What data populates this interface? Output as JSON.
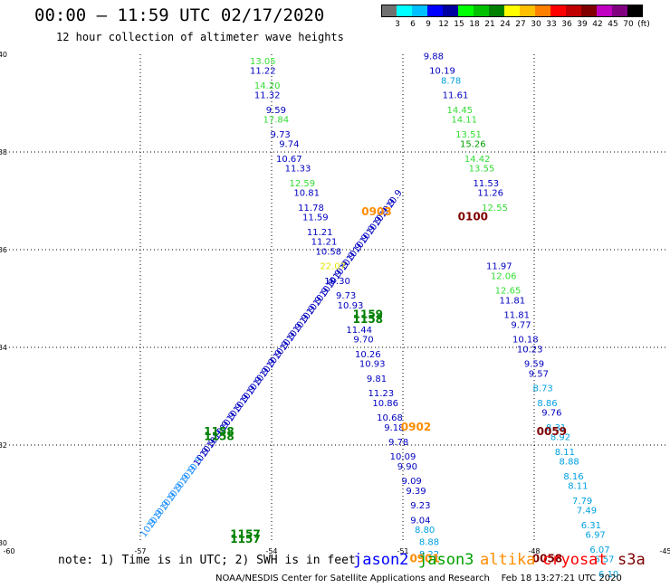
{
  "header": {
    "title": "00:00 – 11:59 UTC 02/17/2020",
    "subtitle": "12 hour collection of altimeter wave heights"
  },
  "colorbar": {
    "colors": [
      "#707070",
      "#00ffff",
      "#00c0ff",
      "#0000ff",
      "#0000a0",
      "#00ff00",
      "#00c000",
      "#008000",
      "#ffff00",
      "#ffc000",
      "#ff8000",
      "#ff0000",
      "#c00000",
      "#800000",
      "#c000c0",
      "#800080",
      "#000000"
    ],
    "labels": [
      "3",
      "6",
      "9",
      "12",
      "15",
      "18",
      "21",
      "24",
      "27",
      "30",
      "33",
      "36",
      "39",
      "42",
      "45",
      "70",
      "(ft)"
    ]
  },
  "chart_data": {
    "type": "map",
    "lon_range": [
      -60,
      -45
    ],
    "lat_range": [
      30,
      40
    ],
    "x_ticks": [
      "-60",
      "-57",
      "-54",
      "-51",
      "-48",
      "-45"
    ],
    "y_ticks": [
      "30",
      "32",
      "34",
      "36",
      "38",
      "40"
    ],
    "grid": true,
    "swh_labels": [
      {
        "lon": -54.2,
        "lat": 39.8,
        "text": "13.05",
        "color": "#33dd33"
      },
      {
        "lon": -54.2,
        "lat": 39.6,
        "text": "11.22",
        "color": "#0000c0"
      },
      {
        "lon": -54.1,
        "lat": 39.3,
        "text": "14.20",
        "color": "#33dd33"
      },
      {
        "lon": -54.1,
        "lat": 39.1,
        "text": "11.32",
        "color": "#0000c0"
      },
      {
        "lon": -53.9,
        "lat": 38.8,
        "text": "9.59",
        "color": "#0000c0"
      },
      {
        "lon": -53.9,
        "lat": 38.6,
        "text": "17.84",
        "color": "#33dd33"
      },
      {
        "lon": -53.8,
        "lat": 38.3,
        "text": "9.73",
        "color": "#0000c0"
      },
      {
        "lon": -53.6,
        "lat": 38.1,
        "text": "9.74",
        "color": "#0000c0"
      },
      {
        "lon": -53.6,
        "lat": 37.8,
        "text": "10.67",
        "color": "#0000c0"
      },
      {
        "lon": -53.4,
        "lat": 37.6,
        "text": "11.33",
        "color": "#0000c0"
      },
      {
        "lon": -53.3,
        "lat": 37.3,
        "text": "12.59",
        "color": "#33dd33"
      },
      {
        "lon": -53.2,
        "lat": 37.1,
        "text": "10.81",
        "color": "#0000c0"
      },
      {
        "lon": -53.1,
        "lat": 36.8,
        "text": "11.78",
        "color": "#0000c0"
      },
      {
        "lon": -53.0,
        "lat": 36.6,
        "text": "11.59",
        "color": "#0000c0"
      },
      {
        "lon": -52.9,
        "lat": 36.3,
        "text": "11.21",
        "color": "#0000c0"
      },
      {
        "lon": -52.8,
        "lat": 36.1,
        "text": "11.21",
        "color": "#0000c0"
      },
      {
        "lon": -52.7,
        "lat": 35.9,
        "text": "10.58",
        "color": "#0000c0"
      },
      {
        "lon": -52.6,
        "lat": 35.6,
        "text": "22.07",
        "color": "#e6e600"
      },
      {
        "lon": -52.5,
        "lat": 35.3,
        "text": "10.30",
        "color": "#0000c0"
      },
      {
        "lon": -52.3,
        "lat": 35.0,
        "text": "9.73",
        "color": "#0000c0"
      },
      {
        "lon": -52.2,
        "lat": 34.8,
        "text": "10.93",
        "color": "#0000c0"
      },
      {
        "lon": -52.0,
        "lat": 34.3,
        "text": "11.44",
        "color": "#0000c0"
      },
      {
        "lon": -51.9,
        "lat": 34.1,
        "text": "9.70",
        "color": "#0000c0"
      },
      {
        "lon": -51.8,
        "lat": 33.8,
        "text": "10.26",
        "color": "#0000c0"
      },
      {
        "lon": -51.7,
        "lat": 33.6,
        "text": "10.93",
        "color": "#0000c0"
      },
      {
        "lon": -51.6,
        "lat": 33.3,
        "text": "9.81",
        "color": "#0000c0"
      },
      {
        "lon": -51.5,
        "lat": 33.0,
        "text": "11.23",
        "color": "#0000c0"
      },
      {
        "lon": -51.4,
        "lat": 32.8,
        "text": "10.86",
        "color": "#0000c0"
      },
      {
        "lon": -51.3,
        "lat": 32.5,
        "text": "10.68",
        "color": "#0000c0"
      },
      {
        "lon": -51.2,
        "lat": 32.3,
        "text": "9.18",
        "color": "#0000c0"
      },
      {
        "lon": -51.1,
        "lat": 32.0,
        "text": "9.78",
        "color": "#0000c0"
      },
      {
        "lon": -51.0,
        "lat": 31.7,
        "text": "10.09",
        "color": "#0000c0"
      },
      {
        "lon": -50.9,
        "lat": 31.5,
        "text": "9.90",
        "color": "#0000c0"
      },
      {
        "lon": -50.8,
        "lat": 31.2,
        "text": "9.09",
        "color": "#0000c0"
      },
      {
        "lon": -50.7,
        "lat": 31.0,
        "text": "9.39",
        "color": "#0000c0"
      },
      {
        "lon": -50.6,
        "lat": 30.7,
        "text": "9.23",
        "color": "#0000c0"
      },
      {
        "lon": -50.6,
        "lat": 30.4,
        "text": "9.04",
        "color": "#0000c0"
      },
      {
        "lon": -50.5,
        "lat": 30.2,
        "text": "8.80",
        "color": "#00a0e0"
      },
      {
        "lon": -50.4,
        "lat": 29.95,
        "text": "8.88",
        "color": "#00a0e0"
      },
      {
        "lon": -50.4,
        "lat": 29.7,
        "text": "8.22",
        "color": "#00a0e0"
      },
      {
        "lon": -50.3,
        "lat": 39.9,
        "text": "9.88",
        "color": "#0000c0"
      },
      {
        "lon": -50.1,
        "lat": 39.6,
        "text": "10.19",
        "color": "#0000c0"
      },
      {
        "lon": -49.9,
        "lat": 39.4,
        "text": "8.78",
        "color": "#00a0e0"
      },
      {
        "lon": -49.8,
        "lat": 39.1,
        "text": "11.61",
        "color": "#0000c0"
      },
      {
        "lon": -49.7,
        "lat": 38.8,
        "text": "14.45",
        "color": "#33dd33"
      },
      {
        "lon": -49.6,
        "lat": 38.6,
        "text": "14.11",
        "color": "#33dd33"
      },
      {
        "lon": -49.5,
        "lat": 38.3,
        "text": "13.51",
        "color": "#33dd33"
      },
      {
        "lon": -49.4,
        "lat": 38.1,
        "text": "15.26",
        "color": "#00a000"
      },
      {
        "lon": -49.3,
        "lat": 37.8,
        "text": "14.42",
        "color": "#33dd33"
      },
      {
        "lon": -49.2,
        "lat": 37.6,
        "text": "13.55",
        "color": "#33dd33"
      },
      {
        "lon": -49.1,
        "lat": 37.3,
        "text": "11.53",
        "color": "#0000c0"
      },
      {
        "lon": -49.0,
        "lat": 37.1,
        "text": "11.26",
        "color": "#0000c0"
      },
      {
        "lon": -48.9,
        "lat": 36.8,
        "text": "12.55",
        "color": "#33dd33"
      },
      {
        "lon": -48.8,
        "lat": 35.6,
        "text": "11.97",
        "color": "#0000c0"
      },
      {
        "lon": -48.7,
        "lat": 35.4,
        "text": "12.06",
        "color": "#33dd33"
      },
      {
        "lon": -48.6,
        "lat": 35.1,
        "text": "12.65",
        "color": "#33dd33"
      },
      {
        "lon": -48.5,
        "lat": 34.9,
        "text": "11.81",
        "color": "#0000c0"
      },
      {
        "lon": -48.4,
        "lat": 34.6,
        "text": "11.81",
        "color": "#0000c0"
      },
      {
        "lon": -48.3,
        "lat": 34.4,
        "text": "9.77",
        "color": "#0000c0"
      },
      {
        "lon": -48.2,
        "lat": 34.1,
        "text": "10.18",
        "color": "#0000c0"
      },
      {
        "lon": -48.1,
        "lat": 33.9,
        "text": "10.23",
        "color": "#0000c0"
      },
      {
        "lon": -48.0,
        "lat": 33.6,
        "text": "9.59",
        "color": "#0000c0"
      },
      {
        "lon": -47.9,
        "lat": 33.4,
        "text": "9.57",
        "color": "#0000c0"
      },
      {
        "lon": -47.8,
        "lat": 33.1,
        "text": "8.73",
        "color": "#00a0e0"
      },
      {
        "lon": -47.7,
        "lat": 32.8,
        "text": "8.86",
        "color": "#00a0e0"
      },
      {
        "lon": -47.6,
        "lat": 32.6,
        "text": "9.76",
        "color": "#0000c0"
      },
      {
        "lon": -47.5,
        "lat": 32.3,
        "text": "8.31",
        "color": "#00a0e0"
      },
      {
        "lon": -47.4,
        "lat": 32.1,
        "text": "8.92",
        "color": "#00a0e0"
      },
      {
        "lon": -47.3,
        "lat": 31.8,
        "text": "8.11",
        "color": "#00a0e0"
      },
      {
        "lon": -47.2,
        "lat": 31.6,
        "text": "8.88",
        "color": "#00a0e0"
      },
      {
        "lon": -47.1,
        "lat": 31.3,
        "text": "8.16",
        "color": "#00a0e0"
      },
      {
        "lon": -47.0,
        "lat": 31.1,
        "text": "8.11",
        "color": "#00a0e0"
      },
      {
        "lon": -46.9,
        "lat": 30.8,
        "text": "7.79",
        "color": "#00a0e0"
      },
      {
        "lon": -46.8,
        "lat": 30.6,
        "text": "7.49",
        "color": "#00a0e0"
      },
      {
        "lon": -46.7,
        "lat": 30.3,
        "text": "6.31",
        "color": "#00a0e0"
      },
      {
        "lon": -46.6,
        "lat": 30.1,
        "text": "6.97",
        "color": "#00a0e0"
      },
      {
        "lon": -46.5,
        "lat": 29.8,
        "text": "6.07",
        "color": "#00a0e0"
      },
      {
        "lon": -46.4,
        "lat": 29.6,
        "text": "6.57",
        "color": "#00a0e0"
      },
      {
        "lon": -46.3,
        "lat": 29.3,
        "text": "6.10",
        "color": "#00a0e0"
      }
    ],
    "pass_times": [
      {
        "lon": -51.6,
        "lat": 36.7,
        "text": "0903",
        "color": "#ff8c00"
      },
      {
        "lon": -49.4,
        "lat": 36.6,
        "text": "0100",
        "color": "#800000"
      },
      {
        "lon": -50.7,
        "lat": 32.3,
        "text": "0902",
        "color": "#ff8c00"
      },
      {
        "lon": -47.6,
        "lat": 32.2,
        "text": "0059",
        "color": "#800000"
      },
      {
        "lon": -50.5,
        "lat": 29.6,
        "text": "0901",
        "color": "#ff8c00"
      },
      {
        "lon": -47.7,
        "lat": 29.6,
        "text": "0058",
        "color": "#800000"
      },
      {
        "lon": -51.8,
        "lat": 34.6,
        "text": "1159",
        "color": "#008000"
      },
      {
        "lon": -51.8,
        "lat": 34.5,
        "text": "1158",
        "color": "#008000"
      },
      {
        "lon": -55.2,
        "lat": 32.2,
        "text": "1158",
        "color": "#008000"
      },
      {
        "lon": -55.2,
        "lat": 32.1,
        "text": "1158",
        "color": "#008000"
      },
      {
        "lon": -54.6,
        "lat": 30.1,
        "text": "1157",
        "color": "#008000"
      },
      {
        "lon": -54.6,
        "lat": 30.0,
        "text": "1157",
        "color": "#008000"
      }
    ]
  },
  "note": "note: 1) Time is in UTC; 2) SWH is in feet",
  "satellites": [
    {
      "name": "jason2",
      "color": "#0000ff"
    },
    {
      "name": "jason3",
      "color": "#00a000"
    },
    {
      "name": "altika",
      "color": "#ff8c00"
    },
    {
      "name": "cryosat",
      "color": "#ff0000"
    },
    {
      "name": "s3a",
      "color": "#800000"
    }
  ],
  "footer": "NOAA/NESDIS Center for Satellite Applications and Research    Feb 18 13:27:21 UTC 2020"
}
